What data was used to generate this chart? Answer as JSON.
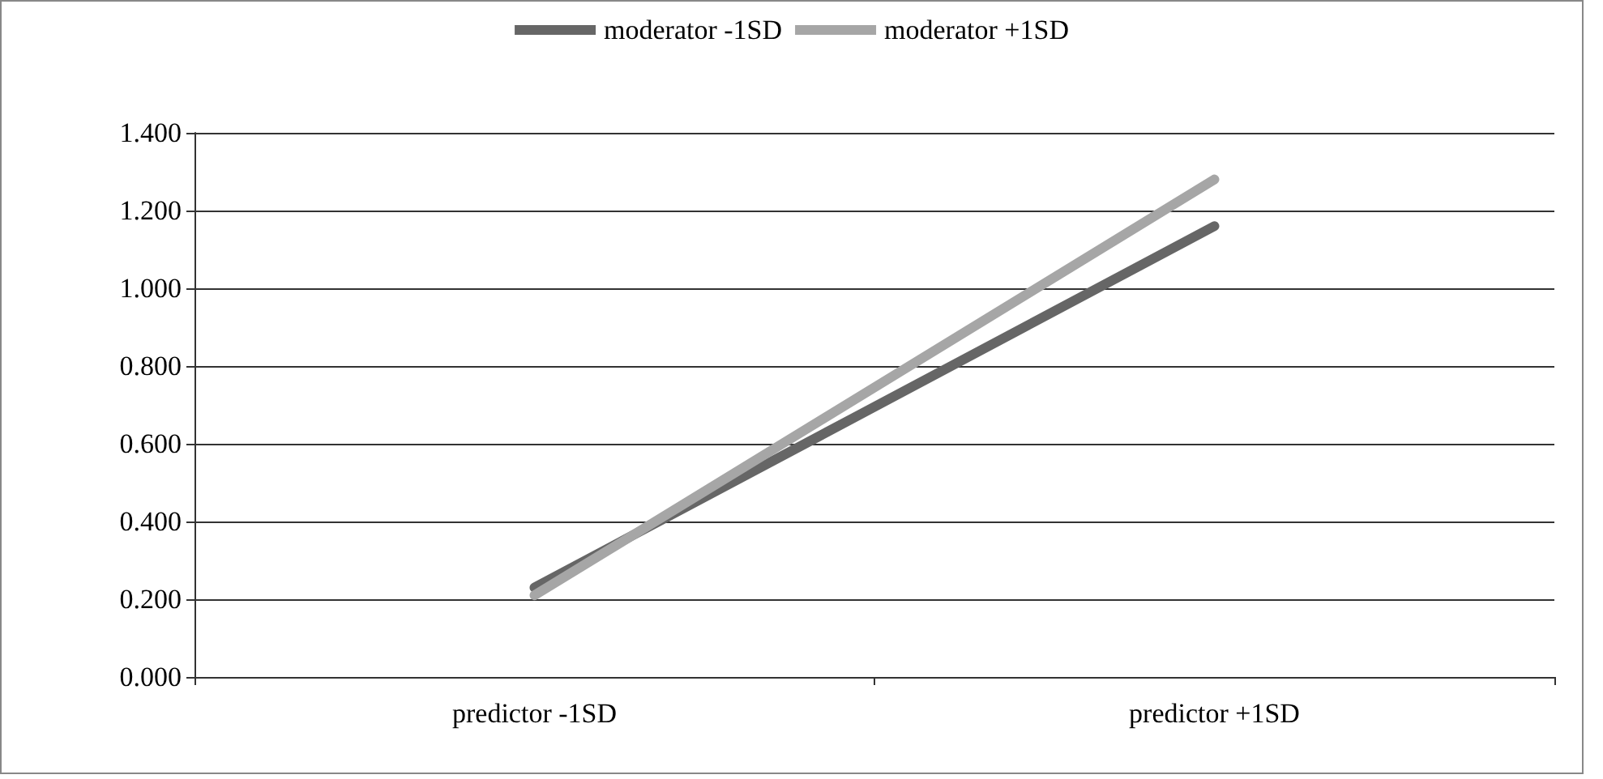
{
  "chart_data": {
    "type": "line",
    "categories": [
      "predictor -1SD",
      "predictor +1SD"
    ],
    "series": [
      {
        "name": "moderator -1SD",
        "color": "#666666",
        "values": [
          0.23,
          1.16
        ]
      },
      {
        "name": "moderator +1SD",
        "color": "#a6a6a6",
        "values": [
          0.21,
          1.28
        ]
      }
    ],
    "ylim": [
      0,
      1.4
    ],
    "yticks": [
      {
        "value": 0,
        "label": "0.000"
      },
      {
        "value": 0.2,
        "label": "0.200"
      },
      {
        "value": 0.4,
        "label": "0.400"
      },
      {
        "value": 0.6,
        "label": "0.600"
      },
      {
        "value": 0.8,
        "label": "0.800"
      },
      {
        "value": 1,
        "label": "1.000"
      },
      {
        "value": 1.2,
        "label": "1.200"
      },
      {
        "value": 1.4,
        "label": "1.400"
      }
    ],
    "grid": "y",
    "legend": "top",
    "marker": "none",
    "line_style": "solid"
  }
}
